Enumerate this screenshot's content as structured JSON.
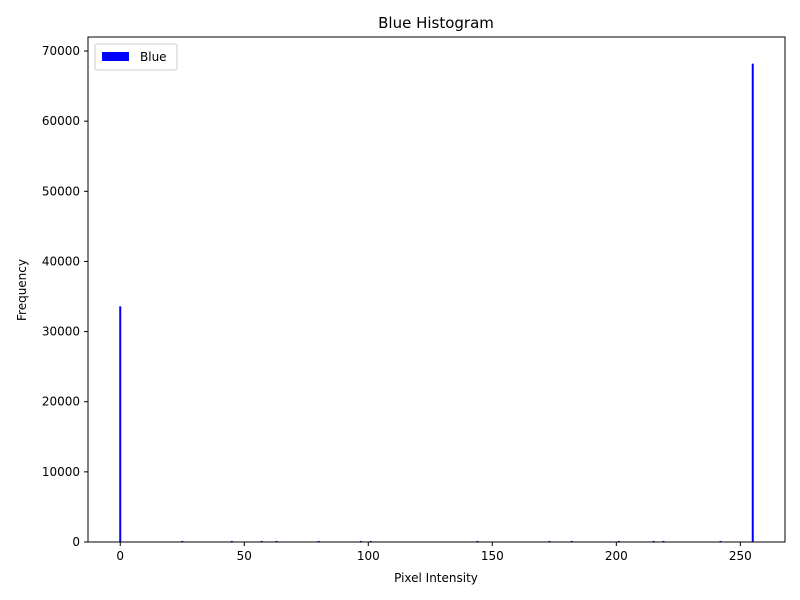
{
  "chart_data": {
    "type": "bar",
    "title": "Blue Histogram",
    "xlabel": "Pixel Intensity",
    "ylabel": "Frequency",
    "xlim": [
      -13,
      268
    ],
    "ylim": [
      0,
      72000
    ],
    "xticks": [
      0,
      50,
      100,
      150,
      200,
      250
    ],
    "yticks": [
      0,
      10000,
      20000,
      30000,
      40000,
      50000,
      60000,
      70000
    ],
    "legend_position": "upper-left",
    "color": "#0000ff",
    "series": [
      {
        "name": "Blue",
        "x": [
          0,
          25,
          45,
          57,
          63,
          80,
          97,
          101,
          144,
          173,
          182,
          201,
          215,
          219,
          242,
          255
        ],
        "values": [
          33600,
          150,
          150,
          150,
          150,
          150,
          150,
          150,
          150,
          150,
          150,
          150,
          150,
          150,
          150,
          68200
        ]
      }
    ]
  }
}
